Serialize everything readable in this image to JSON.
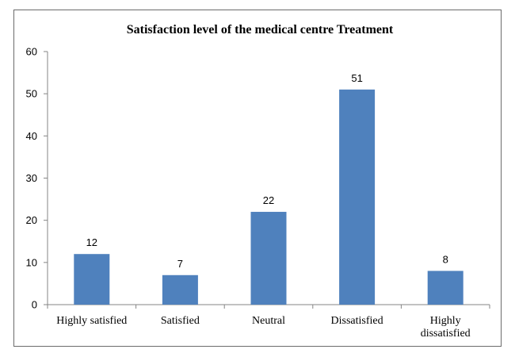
{
  "chart_data": {
    "type": "bar",
    "title": "Satisfaction level of the medical centre Treatment",
    "categories": [
      "Highly satisfied",
      "Satisfied",
      "Neutral",
      "Dissatisfied",
      "Highly dissatisfied"
    ],
    "category_lines": [
      [
        "Highly satisfied"
      ],
      [
        "Satisfied"
      ],
      [
        "Neutral"
      ],
      [
        "Dissatisfied"
      ],
      [
        "Highly",
        "dissatisfied"
      ]
    ],
    "series": [
      {
        "values": [
          12,
          7,
          22,
          51,
          8
        ]
      }
    ],
    "ylim": [
      0,
      60
    ],
    "yticks": [
      0,
      10,
      20,
      30,
      40,
      50,
      60
    ],
    "data_labels": true,
    "grid": false,
    "legend": "none",
    "bar_color": "#4f81bd"
  }
}
